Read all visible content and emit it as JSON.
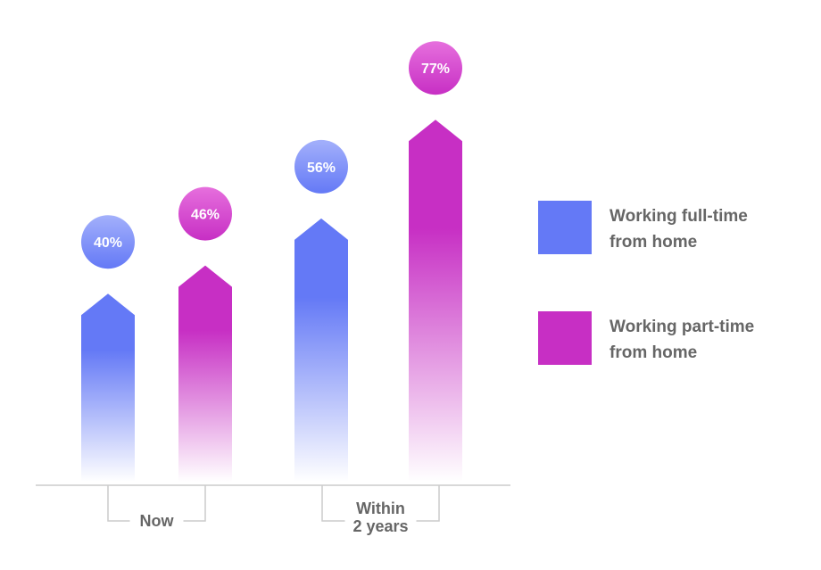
{
  "chart_data": {
    "type": "bar",
    "categories": [
      "Now",
      "Within\n2 years"
    ],
    "series": [
      {
        "name": "Working full-time from home",
        "values": [
          40,
          56
        ],
        "labels": [
          "40%",
          "56%"
        ]
      },
      {
        "name": "Working part-time from home",
        "values": [
          46,
          77
        ],
        "labels": [
          "46%",
          "77%"
        ]
      }
    ],
    "ylim": [
      0,
      100
    ],
    "grid": false,
    "legend_position": "right"
  },
  "legend": {
    "items": [
      {
        "label": "Working full-time\nfrom home",
        "color": "#6479f6"
      },
      {
        "label": "Working part-time\nfrom home",
        "color": "#c72fc4"
      }
    ]
  },
  "colors": {
    "full_time": "#6479f6",
    "full_time_light": "#a3b0fb",
    "part_time": "#c72fc4",
    "part_time_light": "#e66fdd",
    "axis": "#cccccc",
    "text": "#666666"
  }
}
